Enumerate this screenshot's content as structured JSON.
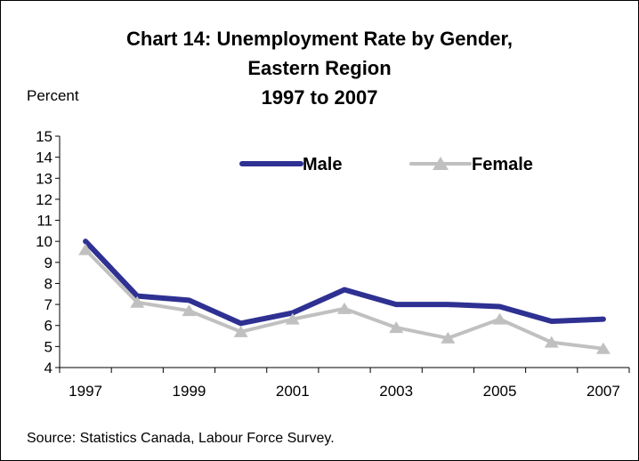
{
  "header": {
    "title_line1": "Chart 14: Unemployment Rate by Gender,",
    "title_line2": "Eastern Region",
    "title_line3": "1997 to 2007"
  },
  "footer": {
    "source": "Source:  Statistics Canada, Labour Force Survey."
  },
  "chart_data": {
    "type": "line",
    "title": "Chart 14: Unemployment Rate by Gender, Eastern Region 1997 to 2007",
    "ylabel": "Percent",
    "xlabel": "",
    "x": [
      1997,
      1998,
      1999,
      2000,
      2001,
      2002,
      2003,
      2004,
      2005,
      2006,
      2007
    ],
    "x_tick_labels": [
      "1997",
      "1999",
      "2001",
      "2003",
      "2005",
      "2007"
    ],
    "ylim": [
      4,
      15
    ],
    "y_ticks": [
      4,
      5,
      6,
      7,
      8,
      9,
      10,
      11,
      12,
      13,
      14,
      15
    ],
    "grid": false,
    "legend_position": "top",
    "series": [
      {
        "name": "Male",
        "color": "#2e3192",
        "marker": "none",
        "values": [
          10.0,
          7.4,
          7.2,
          6.1,
          6.6,
          7.7,
          7.0,
          7.0,
          6.9,
          6.2,
          6.3
        ]
      },
      {
        "name": "Female",
        "color": "#c0c0c0",
        "marker": "triangle",
        "values": [
          9.6,
          7.1,
          6.7,
          5.7,
          6.3,
          6.8,
          5.9,
          5.4,
          6.3,
          5.2,
          4.9
        ]
      }
    ]
  }
}
